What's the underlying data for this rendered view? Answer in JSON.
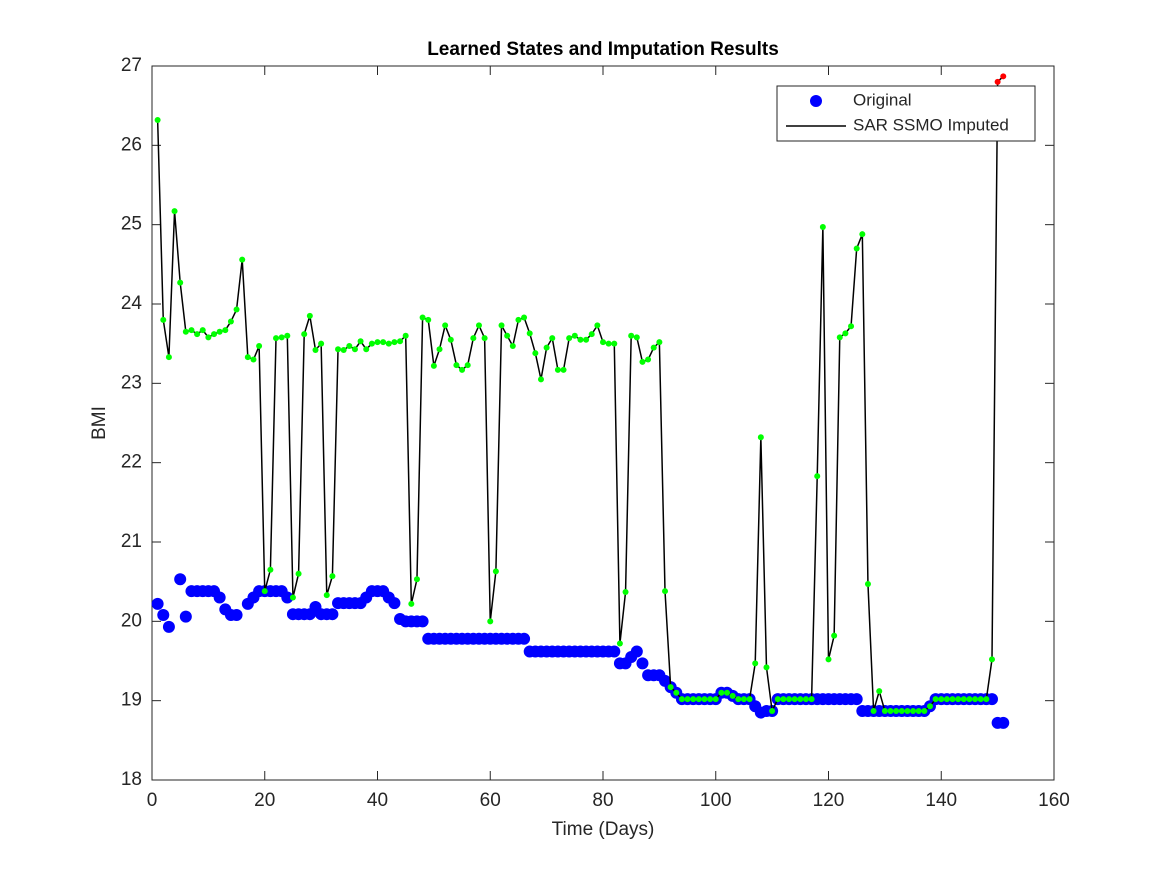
{
  "chart_data": {
    "type": "scatter-line",
    "title": "Learned States and Imputation Results",
    "xlabel": "Time (Days)",
    "ylabel": "BMI",
    "xlim": [
      0,
      160
    ],
    "xticks": [
      0,
      20,
      40,
      60,
      80,
      100,
      120,
      140,
      160
    ],
    "ylim": [
      18,
      27
    ],
    "yticks": [
      18,
      19,
      20,
      21,
      22,
      23,
      24,
      25,
      26,
      27
    ],
    "legend": "top-right",
    "x": [
      1,
      2,
      3,
      4,
      5,
      6,
      7,
      8,
      9,
      10,
      11,
      12,
      13,
      14,
      15,
      16,
      17,
      18,
      19,
      20,
      21,
      22,
      23,
      24,
      25,
      26,
      27,
      28,
      29,
      30,
      31,
      32,
      33,
      34,
      35,
      36,
      37,
      38,
      39,
      40,
      41,
      42,
      43,
      44,
      45,
      46,
      47,
      48,
      49,
      50,
      51,
      52,
      53,
      54,
      55,
      56,
      57,
      58,
      59,
      60,
      61,
      62,
      63,
      64,
      65,
      66,
      67,
      68,
      69,
      70,
      71,
      72,
      73,
      74,
      75,
      76,
      77,
      78,
      79,
      80,
      81,
      82,
      83,
      84,
      85,
      86,
      87,
      88,
      89,
      90,
      91,
      92,
      93,
      94,
      95,
      96,
      97,
      98,
      99,
      100,
      101,
      102,
      103,
      104,
      105,
      106,
      107,
      108,
      109,
      110,
      111,
      112,
      113,
      114,
      115,
      116,
      117,
      118,
      119,
      120,
      121,
      122,
      123,
      124,
      125,
      126,
      127,
      128,
      129,
      130,
      131,
      132,
      133,
      134,
      135,
      136,
      137,
      138,
      139,
      140,
      141,
      142,
      143,
      144,
      145,
      146,
      147,
      148,
      149,
      150,
      151
    ],
    "series": [
      {
        "name": "Original",
        "style": "markers",
        "color": "#0000ff",
        "values": [
          20.22,
          20.08,
          19.93,
          null,
          20.53,
          20.06,
          20.38,
          20.38,
          20.38,
          20.38,
          20.38,
          20.3,
          20.15,
          20.08,
          20.08,
          null,
          20.22,
          20.3,
          20.38,
          20.38,
          20.38,
          20.38,
          20.38,
          20.3,
          20.09,
          20.09,
          20.09,
          20.09,
          20.18,
          20.09,
          20.09,
          20.09,
          20.23,
          20.23,
          20.23,
          20.23,
          20.23,
          20.3,
          20.38,
          20.38,
          20.38,
          20.3,
          20.23,
          20.03,
          20.0,
          20.0,
          20.0,
          20.0,
          19.78,
          19.78,
          19.78,
          19.78,
          19.78,
          19.78,
          19.78,
          19.78,
          19.78,
          19.78,
          19.78,
          19.78,
          19.78,
          19.78,
          19.78,
          19.78,
          19.78,
          19.78,
          19.62,
          19.62,
          19.62,
          19.62,
          19.62,
          19.62,
          19.62,
          19.62,
          19.62,
          19.62,
          19.62,
          19.62,
          19.62,
          19.62,
          19.62,
          19.62,
          19.47,
          19.47,
          19.55,
          19.62,
          19.47,
          19.32,
          19.32,
          19.32,
          19.25,
          19.17,
          19.1,
          19.02,
          19.02,
          19.02,
          19.02,
          19.02,
          19.02,
          19.02,
          19.1,
          19.1,
          19.06,
          19.02,
          19.02,
          19.02,
          18.93,
          18.85,
          18.87,
          18.87,
          19.02,
          19.02,
          19.02,
          19.02,
          19.02,
          19.02,
          19.02,
          19.02,
          19.02,
          19.02,
          19.02,
          19.02,
          19.02,
          19.02,
          19.02,
          18.87,
          18.87,
          18.87,
          18.87,
          18.87,
          18.87,
          18.87,
          18.87,
          18.87,
          18.87,
          18.87,
          18.87,
          18.93,
          19.02,
          19.02,
          19.02,
          19.02,
          19.02,
          19.02,
          19.02,
          19.02,
          19.02,
          19.02,
          19.02,
          18.72,
          18.72
        ]
      },
      {
        "name": "SAR SSMO Imputed",
        "style": "line",
        "color": "#000000",
        "state_colors": [
          "#00ff00",
          "#ff0000"
        ],
        "states": [
          0,
          0,
          0,
          0,
          0,
          0,
          0,
          0,
          0,
          0,
          0,
          0,
          0,
          0,
          0,
          0,
          0,
          0,
          0,
          0,
          0,
          0,
          0,
          0,
          0,
          0,
          0,
          0,
          0,
          0,
          0,
          0,
          0,
          0,
          0,
          0,
          0,
          0,
          0,
          0,
          0,
          0,
          0,
          0,
          0,
          0,
          0,
          0,
          0,
          0,
          0,
          0,
          0,
          0,
          0,
          0,
          0,
          0,
          0,
          0,
          0,
          0,
          0,
          0,
          0,
          0,
          0,
          0,
          0,
          0,
          0,
          0,
          0,
          0,
          0,
          0,
          0,
          0,
          0,
          0,
          0,
          0,
          0,
          0,
          0,
          0,
          0,
          0,
          0,
          0,
          0,
          0,
          0,
          0,
          0,
          0,
          0,
          0,
          0,
          0,
          0,
          0,
          0,
          0,
          0,
          0,
          0,
          0,
          0,
          0,
          0,
          0,
          0,
          0,
          0,
          0,
          0,
          0,
          0,
          0,
          0,
          0,
          0,
          0,
          0,
          0,
          0,
          0,
          0,
          0,
          0,
          0,
          0,
          0,
          0,
          0,
          0,
          0,
          0,
          0,
          0,
          0,
          0,
          0,
          0,
          0,
          0,
          0,
          0,
          1,
          1
        ],
        "values": [
          26.32,
          23.8,
          23.33,
          25.17,
          24.27,
          23.65,
          23.67,
          23.62,
          23.67,
          23.58,
          23.62,
          23.65,
          23.67,
          23.78,
          23.93,
          24.56,
          23.33,
          23.3,
          23.47,
          20.38,
          20.65,
          23.57,
          23.58,
          23.6,
          20.3,
          20.6,
          23.62,
          23.85,
          23.42,
          23.5,
          20.33,
          20.57,
          23.43,
          23.42,
          23.47,
          23.43,
          23.53,
          23.43,
          23.5,
          23.52,
          23.52,
          23.5,
          23.52,
          23.53,
          23.6,
          20.22,
          20.53,
          23.83,
          23.8,
          23.22,
          23.43,
          23.73,
          23.55,
          23.23,
          23.17,
          23.23,
          23.57,
          23.73,
          23.57,
          20.0,
          20.63,
          23.73,
          23.6,
          23.47,
          23.8,
          23.83,
          23.63,
          23.38,
          23.05,
          23.45,
          23.57,
          23.17,
          23.17,
          23.57,
          23.6,
          23.55,
          23.55,
          23.62,
          23.73,
          23.52,
          23.5,
          23.5,
          19.72,
          20.37,
          23.6,
          23.58,
          23.27,
          23.3,
          23.45,
          23.52,
          20.38,
          19.17,
          19.1,
          19.02,
          19.02,
          19.02,
          19.02,
          19.02,
          19.02,
          19.02,
          19.1,
          19.1,
          19.06,
          19.02,
          19.02,
          19.02,
          19.47,
          22.32,
          19.42,
          18.87,
          19.02,
          19.02,
          19.02,
          19.02,
          19.02,
          19.02,
          19.02,
          21.83,
          24.97,
          19.52,
          19.82,
          23.58,
          23.63,
          23.72,
          24.7,
          24.88,
          20.47,
          18.87,
          19.12,
          18.87,
          18.87,
          18.87,
          18.87,
          18.87,
          18.87,
          18.87,
          18.87,
          18.93,
          19.02,
          19.02,
          19.02,
          19.02,
          19.02,
          19.02,
          19.02,
          19.02,
          19.02,
          19.02,
          19.52,
          26.8,
          26.87
        ]
      }
    ]
  }
}
